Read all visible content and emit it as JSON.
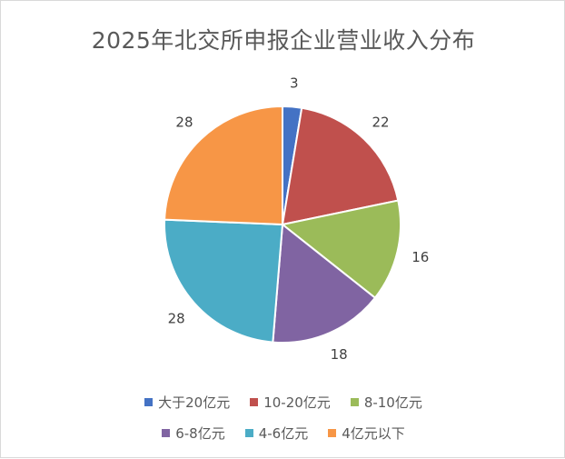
{
  "chart_data": {
    "type": "pie",
    "title": "2025年北交所申报企业营业收入分布",
    "categories": [
      "大于20亿元",
      "10-20亿元",
      "8-10亿元",
      "6-8亿元",
      "4-6亿元",
      "4亿元以下"
    ],
    "values": [
      3,
      22,
      16,
      18,
      28,
      28
    ],
    "colors": [
      "#4472C4",
      "#C0504D",
      "#9BBB59",
      "#8064A2",
      "#4BACC6",
      "#F79646"
    ],
    "legend_position": "bottom",
    "data_labels": true
  }
}
